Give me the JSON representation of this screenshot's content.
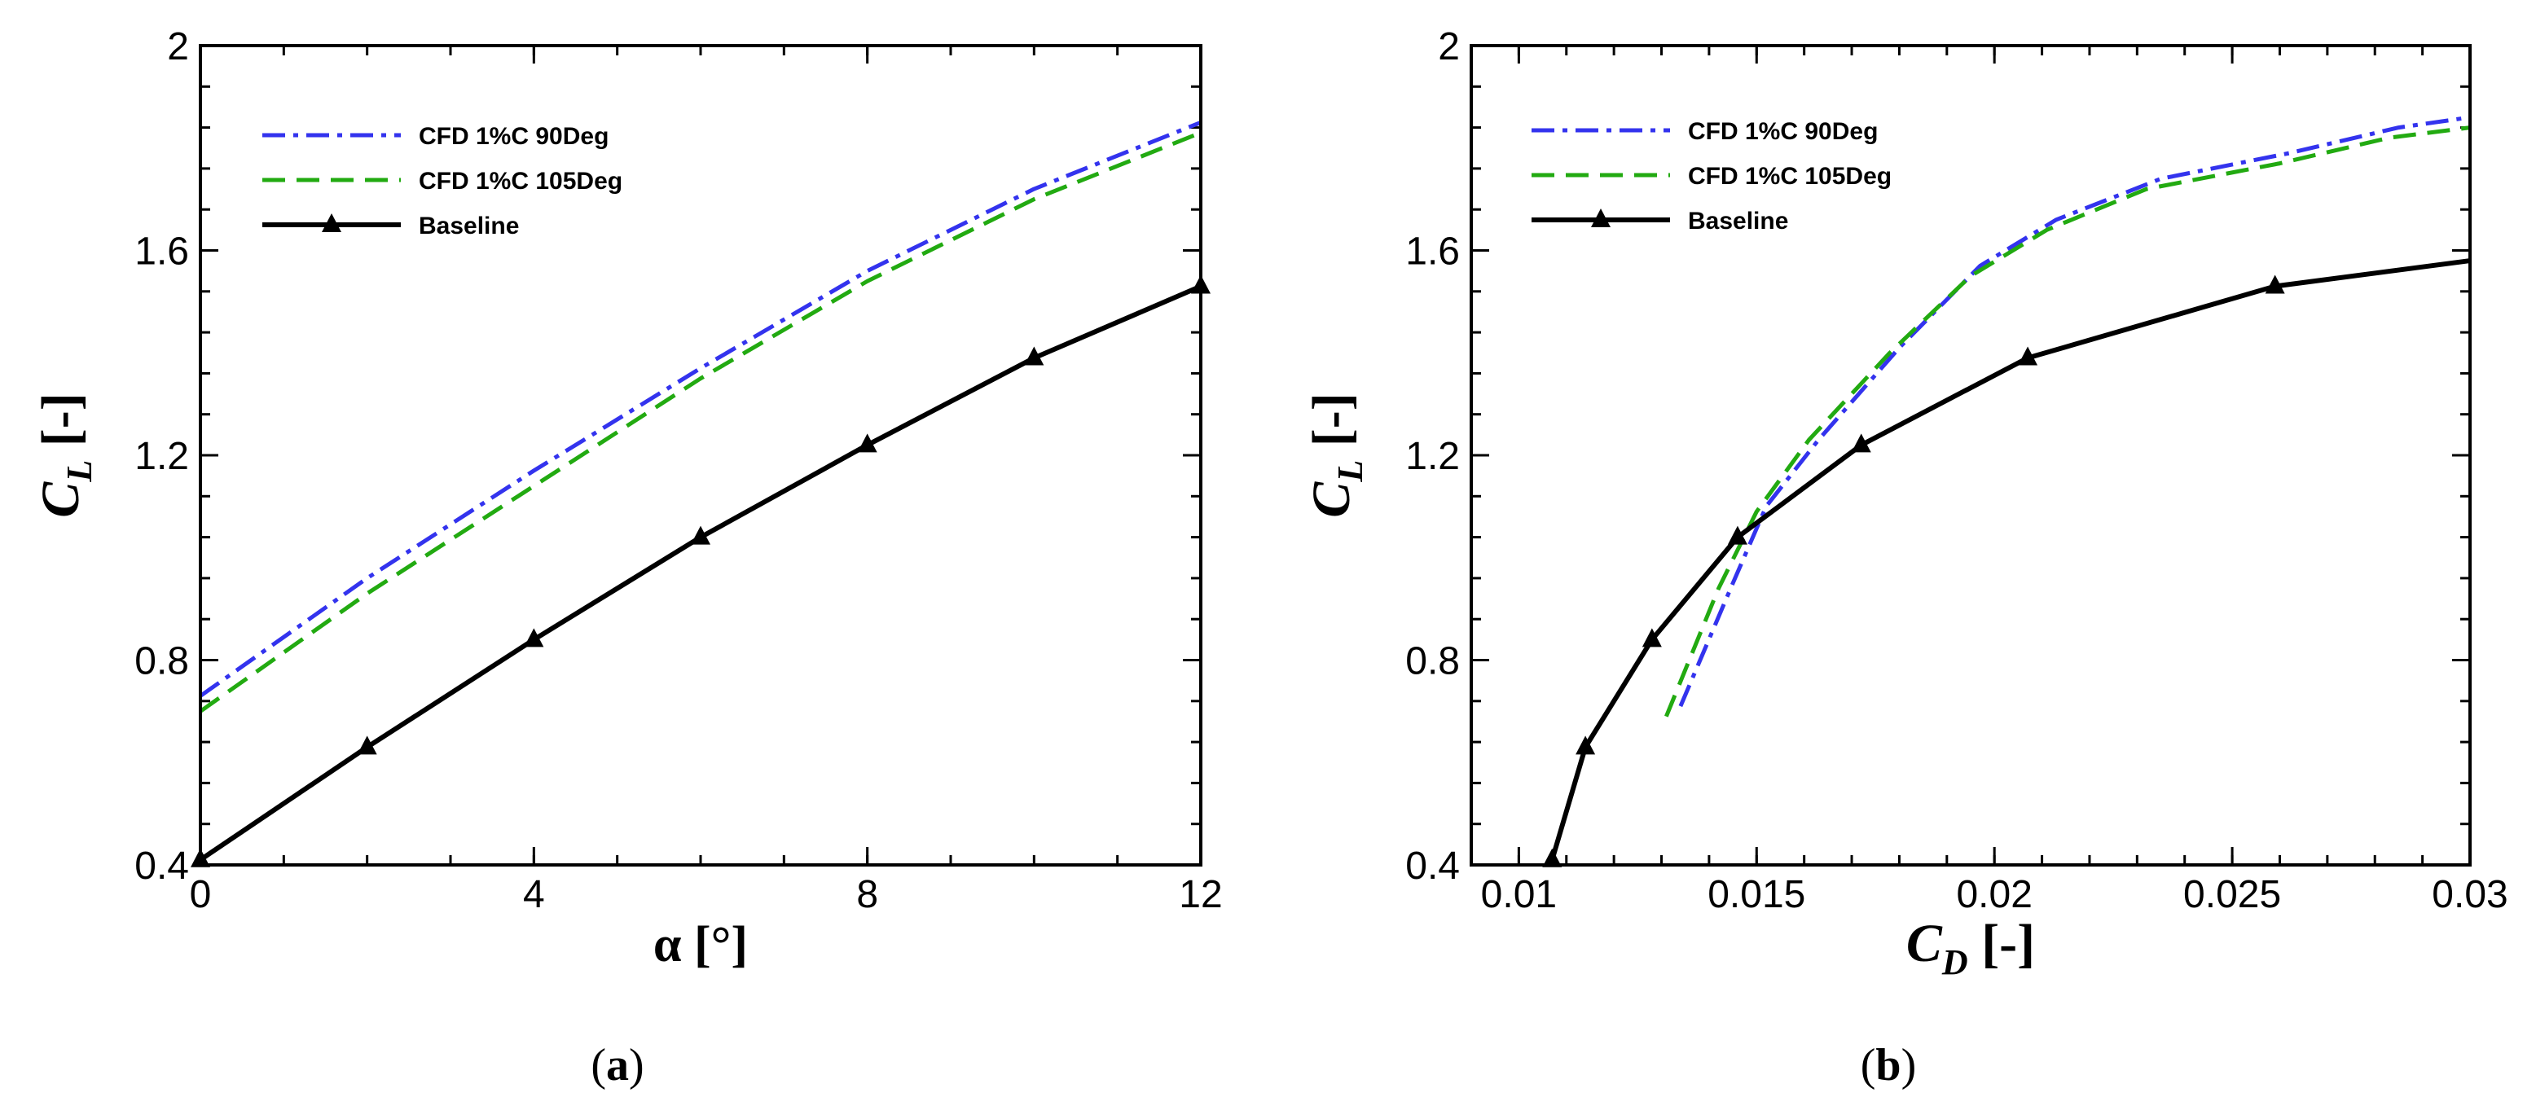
{
  "colors": {
    "cfd90": "#3333ee",
    "cfd105": "#22aa11",
    "baseline": "#000000",
    "frame": "#000000"
  },
  "chart_data": [
    {
      "id": "a",
      "type": "line",
      "caption_letter": "a",
      "xlabel": "α [°]",
      "ylabel_main": "C",
      "ylabel_sub": "L",
      "ylabel_unit": " [-]",
      "xlim": [
        0,
        12
      ],
      "ylim": [
        0.4,
        2.0
      ],
      "xticks": [
        0,
        4,
        8,
        12
      ],
      "xtick_labels": [
        "0",
        "4",
        "8",
        "12"
      ],
      "xminor_step": 1,
      "yticks": [
        0.4,
        0.8,
        1.2,
        1.6,
        2.0
      ],
      "ytick_labels": [
        "0.4",
        "0.8",
        "1.2",
        "1.6",
        "2"
      ],
      "yminor_step": 0.08,
      "legend_position": "top-left",
      "series": [
        {
          "name": "CFD 1%C 90Deg",
          "style": "dashdot",
          "color_key": "cfd90",
          "marker": "none",
          "x": [
            0,
            2,
            4,
            6,
            8,
            10,
            12
          ],
          "y": [
            0.73,
            0.96,
            1.17,
            1.37,
            1.56,
            1.72,
            1.85
          ]
        },
        {
          "name": "CFD 1%C 105Deg",
          "style": "dash",
          "color_key": "cfd105",
          "marker": "none",
          "x": [
            0,
            2,
            4,
            6,
            8,
            10,
            12
          ],
          "y": [
            0.7,
            0.93,
            1.14,
            1.35,
            1.54,
            1.7,
            1.83
          ]
        },
        {
          "name": "Baseline",
          "style": "solid",
          "color_key": "baseline",
          "marker": "triangle",
          "x": [
            0,
            2,
            4,
            6,
            8,
            10,
            12
          ],
          "y": [
            0.41,
            0.63,
            0.84,
            1.04,
            1.22,
            1.39,
            1.53
          ]
        }
      ]
    },
    {
      "id": "b",
      "type": "line",
      "caption_letter": "b",
      "xlabel_main": "C",
      "xlabel_sub": "D",
      "xlabel_unit": " [-]",
      "ylabel_main": "C",
      "ylabel_sub": "L",
      "ylabel_unit": " [-]",
      "xlim": [
        0.009,
        0.03
      ],
      "ylim": [
        0.4,
        2.0
      ],
      "xticks": [
        0.01,
        0.015,
        0.02,
        0.025,
        0.03
      ],
      "xtick_labels": [
        "0.01",
        "0.015",
        "0.02",
        "0.025",
        "0.03"
      ],
      "xminor_step": 0.001,
      "yticks": [
        0.4,
        0.8,
        1.2,
        1.6,
        2.0
      ],
      "ytick_labels": [
        "0.4",
        "0.8",
        "1.2",
        "1.6",
        "2"
      ],
      "yminor_step": 0.08,
      "legend_position": "top-left",
      "series": [
        {
          "name": "CFD 1%C 90Deg",
          "style": "dashdot",
          "color_key": "cfd90",
          "marker": "none",
          "x": [
            0.0134,
            0.0145,
            0.0152,
            0.0163,
            0.018,
            0.0197,
            0.0213,
            0.0235,
            0.0262,
            0.0285,
            0.03
          ],
          "y": [
            0.71,
            0.95,
            1.1,
            1.23,
            1.41,
            1.57,
            1.66,
            1.74,
            1.79,
            1.84,
            1.86
          ]
        },
        {
          "name": "CFD 1%C 105Deg",
          "style": "dash",
          "color_key": "cfd105",
          "marker": "none",
          "x": [
            0.0131,
            0.0142,
            0.015,
            0.0161,
            0.0178,
            0.0195,
            0.0211,
            0.0232,
            0.026,
            0.0283,
            0.03
          ],
          "y": [
            0.69,
            0.94,
            1.09,
            1.23,
            1.4,
            1.55,
            1.64,
            1.72,
            1.77,
            1.82,
            1.84
          ]
        },
        {
          "name": "Baseline",
          "style": "solid",
          "color_key": "baseline",
          "marker": "triangle",
          "x": [
            0.0107,
            0.0114,
            0.0128,
            0.0146,
            0.0172,
            0.0207,
            0.0259,
            0.03
          ],
          "y": [
            0.41,
            0.63,
            0.84,
            1.04,
            1.22,
            1.39,
            1.53,
            1.58
          ],
          "marker_count": 7
        }
      ]
    }
  ]
}
